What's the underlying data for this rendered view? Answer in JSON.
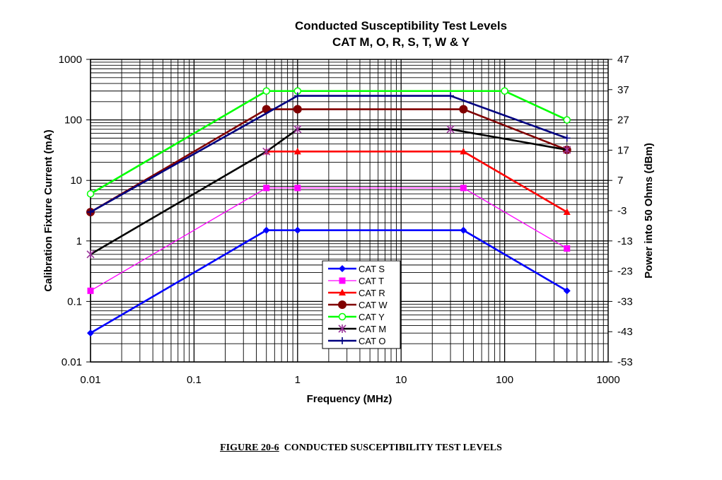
{
  "chart_data": {
    "type": "line",
    "title": "Conducted Susceptibility Test Levels",
    "subtitle": "CAT M, O, R, S, T, W & Y",
    "xlabel": "Frequency (MHz)",
    "ylabel": "Calibration Fixture Current (mA)",
    "y2label": "Power into 50 Ohms (dBm)",
    "xscale": "log",
    "yscale": "log",
    "xlim": [
      0.01,
      1000
    ],
    "ylim": [
      0.01,
      1000
    ],
    "x_ticks": [
      "0.01",
      "0.1",
      "1",
      "10",
      "100",
      "1000"
    ],
    "y_ticks": [
      "0.01",
      "0.1",
      "1",
      "10",
      "100",
      "1000"
    ],
    "y2_ticks": [
      "-53",
      "-43",
      "-33",
      "-23",
      "-13",
      "-3",
      "7",
      "17",
      "27",
      "37",
      "47"
    ],
    "grid": true,
    "legend_position": "bottom-center",
    "series": [
      {
        "name": "CAT S",
        "color": "#0000ff",
        "marker": "diamond",
        "x": [
          0.01,
          0.5,
          1,
          40,
          400
        ],
        "y": [
          0.03,
          1.5,
          1.5,
          1.5,
          0.15
        ]
      },
      {
        "name": "CAT T",
        "color": "#ff00ff",
        "marker": "square",
        "x": [
          0.01,
          0.5,
          1,
          40,
          400
        ],
        "y": [
          0.15,
          7.5,
          7.5,
          7.5,
          0.75
        ]
      },
      {
        "name": "CAT R",
        "color": "#ff0000",
        "marker": "triangle",
        "x": [
          0.5,
          1,
          40,
          400
        ],
        "y": [
          30,
          30,
          30,
          3
        ]
      },
      {
        "name": "CAT W",
        "color": "#800000",
        "marker": "circle",
        "x": [
          0.01,
          0.5,
          1,
          40,
          400
        ],
        "y": [
          3,
          150,
          150,
          150,
          32
        ]
      },
      {
        "name": "CAT Y",
        "color": "#00ff00",
        "marker": "open-circle",
        "x": [
          0.01,
          0.5,
          1,
          100,
          400
        ],
        "y": [
          6,
          300,
          300,
          300,
          100
        ]
      },
      {
        "name": "CAT M",
        "color": "#000000",
        "marker": "star",
        "x": [
          0.01,
          0.5,
          1,
          30,
          400
        ],
        "y": [
          0.6,
          30,
          70,
          70,
          32
        ]
      },
      {
        "name": "CAT O",
        "color": "#000080",
        "marker": "plus",
        "x": [
          0.01,
          1,
          30,
          400
        ],
        "y": [
          3,
          250,
          250,
          50
        ]
      }
    ]
  },
  "caption": {
    "figure": "FIGURE 20-6",
    "text": "CONDUCTED SUSCEPTIBILITY TEST LEVELS"
  }
}
